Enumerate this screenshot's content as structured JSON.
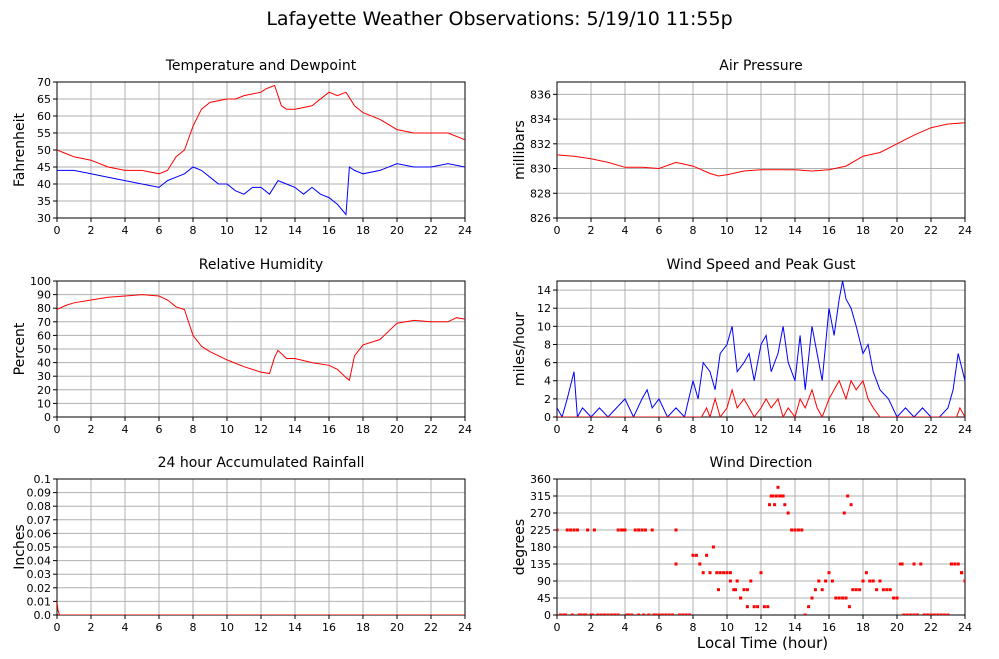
{
  "title": "Lafayette Weather Observations: 5/19/10 11:55p",
  "xlabel": "Local Time (hour)",
  "colors": {
    "red": "#ff0000",
    "blue": "#0000ff",
    "grid": "#b0b0b0",
    "axis": "#000000"
  },
  "chart_data": [
    {
      "type": "line",
      "title": "Temperature and Dewpoint",
      "ylabel": "Fahrenheit",
      "xlim": [
        0,
        24
      ],
      "ylim": [
        30,
        70
      ],
      "xticks": [
        0,
        2,
        4,
        6,
        8,
        10,
        12,
        14,
        16,
        18,
        20,
        22,
        24
      ],
      "yticks": [
        30,
        35,
        40,
        45,
        50,
        55,
        60,
        65,
        70
      ],
      "grid": true,
      "series": [
        {
          "color": "#ff0000",
          "x": [
            0,
            0.5,
            1,
            2,
            3,
            4,
            5,
            6,
            6.5,
            7,
            7.5,
            8,
            8.5,
            9,
            10,
            10.5,
            11,
            12,
            12.3,
            12.8,
            13.2,
            13.5,
            14,
            15,
            16,
            16.5,
            17,
            17.5,
            18,
            19,
            20,
            21,
            22,
            23,
            24
          ],
          "y": [
            50,
            49,
            48,
            47,
            45,
            44,
            44,
            43,
            44,
            48,
            50,
            57,
            62,
            64,
            65,
            65,
            66,
            67,
            68,
            69,
            63,
            62,
            62,
            63,
            67,
            66,
            67,
            63,
            61,
            59,
            56,
            55,
            55,
            55,
            53
          ]
        },
        {
          "color": "#0000ff",
          "x": [
            0,
            1,
            2,
            3,
            4,
            5,
            6,
            6.5,
            7,
            7.5,
            8,
            8.5,
            9,
            9.5,
            10,
            10.5,
            11,
            11.5,
            12,
            12.5,
            13,
            13.5,
            14,
            14.5,
            15,
            15.5,
            16,
            16.5,
            17,
            17.2,
            17.5,
            18,
            19,
            20,
            21,
            22,
            23,
            24
          ],
          "y": [
            44,
            44,
            43,
            42,
            41,
            40,
            39,
            41,
            42,
            43,
            45,
            44,
            42,
            40,
            40,
            38,
            37,
            39,
            39,
            37,
            41,
            40,
            39,
            37,
            39,
            37,
            36,
            34,
            31,
            45,
            44,
            43,
            44,
            46,
            45,
            45,
            46,
            45
          ]
        }
      ]
    },
    {
      "type": "line",
      "title": "Air Pressure",
      "ylabel": "millibars",
      "xlim": [
        0,
        24
      ],
      "ylim": [
        826,
        837
      ],
      "xticks": [
        0,
        2,
        4,
        6,
        8,
        10,
        12,
        14,
        16,
        18,
        20,
        22,
        24
      ],
      "yticks": [
        826,
        828,
        830,
        832,
        834,
        836
      ],
      "grid": true,
      "series": [
        {
          "color": "#ff0000",
          "x": [
            0,
            1,
            2,
            3,
            4,
            5,
            6,
            7,
            8,
            9,
            9.5,
            10,
            11,
            12,
            13,
            14,
            15,
            16,
            17,
            18,
            19,
            20,
            21,
            22,
            23,
            24
          ],
          "y": [
            831.1,
            831,
            830.8,
            830.5,
            830.1,
            830.1,
            830,
            830.5,
            830.2,
            829.6,
            829.4,
            829.5,
            829.8,
            829.9,
            829.9,
            829.9,
            829.8,
            829.9,
            830.2,
            831,
            831.3,
            832,
            832.7,
            833.3,
            833.6,
            833.7
          ]
        }
      ]
    },
    {
      "type": "line",
      "title": "Relative Humidity",
      "ylabel": "Percent",
      "xlim": [
        0,
        24
      ],
      "ylim": [
        0,
        100
      ],
      "xticks": [
        0,
        2,
        4,
        6,
        8,
        10,
        12,
        14,
        16,
        18,
        20,
        22,
        24
      ],
      "yticks": [
        0,
        10,
        20,
        30,
        40,
        50,
        60,
        70,
        80,
        90,
        100
      ],
      "grid": true,
      "series": [
        {
          "color": "#ff0000",
          "x": [
            0,
            0.5,
            1,
            2,
            3,
            4,
            5,
            6,
            6.5,
            7,
            7.5,
            8,
            8.5,
            9,
            10,
            11,
            12,
            12.5,
            12.8,
            13,
            13.5,
            14,
            15,
            16,
            16.5,
            17,
            17.2,
            17.5,
            18,
            19,
            20,
            21,
            22,
            23,
            23.5,
            24
          ],
          "y": [
            79,
            82,
            84,
            86,
            88,
            89,
            90,
            89,
            86,
            81,
            79,
            60,
            52,
            48,
            42,
            37,
            33,
            32,
            44,
            49,
            43,
            43,
            40,
            38,
            35,
            29,
            27,
            45,
            53,
            57,
            69,
            71,
            70,
            70,
            73,
            72
          ]
        }
      ]
    },
    {
      "type": "line",
      "title": "Wind Speed and Peak Gust",
      "ylabel": "miles/hour",
      "xlim": [
        0,
        24
      ],
      "ylim": [
        0,
        15
      ],
      "xticks": [
        0,
        2,
        4,
        6,
        8,
        10,
        12,
        14,
        16,
        18,
        20,
        22,
        24
      ],
      "yticks": [
        0,
        2,
        4,
        6,
        8,
        10,
        12,
        14
      ],
      "grid": true,
      "series": [
        {
          "color": "#0000ff",
          "x": [
            0,
            0.3,
            0.6,
            1,
            1.2,
            1.5,
            2,
            2.5,
            3,
            3.5,
            4,
            4.5,
            5,
            5.3,
            5.6,
            6,
            6.5,
            7,
            7.5,
            8,
            8.3,
            8.6,
            9,
            9.3,
            9.6,
            10,
            10.3,
            10.6,
            11,
            11.3,
            11.6,
            12,
            12.3,
            12.6,
            13,
            13.3,
            13.6,
            14,
            14.3,
            14.6,
            15,
            15.3,
            15.6,
            16,
            16.3,
            16.6,
            16.8,
            17,
            17.3,
            17.6,
            18,
            18.3,
            18.6,
            19,
            19.5,
            20,
            20.5,
            21,
            21.5,
            22,
            22.5,
            23,
            23.3,
            23.6,
            24
          ],
          "y": [
            1,
            0,
            2,
            5,
            0,
            1,
            0,
            1,
            0,
            1,
            2,
            0,
            2,
            3,
            1,
            2,
            0,
            1,
            0,
            4,
            2,
            6,
            5,
            3,
            7,
            8,
            10,
            5,
            6,
            7,
            4,
            8,
            9,
            5,
            7,
            10,
            6,
            4,
            9,
            3,
            10,
            7,
            4,
            12,
            9,
            13,
            15,
            13,
            12,
            10,
            7,
            8,
            5,
            3,
            2,
            0,
            1,
            0,
            1,
            0,
            0,
            1,
            3,
            7,
            4
          ]
        },
        {
          "color": "#ff0000",
          "x": [
            0,
            8.5,
            8.8,
            9,
            9.3,
            9.6,
            10,
            10.3,
            10.6,
            11,
            11.3,
            11.6,
            12,
            12.3,
            12.6,
            13,
            13.3,
            13.6,
            14,
            14.3,
            14.6,
            15,
            15.3,
            15.6,
            16,
            16.3,
            16.6,
            17,
            17.3,
            17.6,
            18,
            18.3,
            18.6,
            19,
            23.5,
            23.7,
            24
          ],
          "y": [
            0,
            0,
            1,
            0,
            2,
            0,
            1,
            3,
            1,
            2,
            1,
            0,
            1,
            2,
            1,
            2,
            0,
            1,
            0,
            2,
            1,
            3,
            1,
            0,
            2,
            3,
            4,
            2,
            4,
            3,
            4,
            2,
            1,
            0,
            0,
            1,
            0
          ]
        }
      ]
    },
    {
      "type": "line",
      "title": "24 hour Accumulated Rainfall",
      "ylabel": "Inches",
      "xlim": [
        0,
        24
      ],
      "ylim": [
        0,
        0.1
      ],
      "xticks": [
        0,
        2,
        4,
        6,
        8,
        10,
        12,
        14,
        16,
        18,
        20,
        22,
        24
      ],
      "yticks": [
        0.0,
        0.01,
        0.02,
        0.03,
        0.04,
        0.05,
        0.06,
        0.07,
        0.08,
        0.09,
        0.1
      ],
      "ytick_labels": [
        "0.0",
        "0.01",
        "0.02",
        "0.03",
        "0.04",
        "0.05",
        "0.06",
        "0.07",
        "0.08",
        "0.09",
        "0.1"
      ],
      "grid": true,
      "series": [
        {
          "color": "#ff0000",
          "x": [
            0,
            0.05,
            0.15,
            24
          ],
          "y": [
            0.01,
            0.004,
            0,
            0
          ]
        }
      ]
    },
    {
      "type": "scatter",
      "title": "Wind Direction",
      "ylabel": "degrees",
      "xlim": [
        0,
        24
      ],
      "ylim": [
        0,
        360
      ],
      "xticks": [
        0,
        2,
        4,
        6,
        8,
        10,
        12,
        14,
        16,
        18,
        20,
        22,
        24
      ],
      "yticks": [
        0,
        45,
        90,
        135,
        180,
        225,
        270,
        315,
        360
      ],
      "grid": true,
      "series": [
        {
          "color": "#ff0000",
          "x": [
            0,
            0.2,
            0.4,
            0.6,
            0.8,
            1.0,
            1.2,
            1.4,
            1.6,
            1.8,
            2.0,
            2.2,
            2.4,
            2.6,
            2.8,
            3.0,
            3.2,
            3.4,
            3.6,
            3.8,
            4.0,
            4.2,
            4.4,
            4.6,
            4.8,
            5.0,
            5.2,
            5.4,
            5.6,
            5.8,
            6.0,
            6.2,
            6.4,
            6.6,
            6.8,
            7.0,
            7.2,
            7.4,
            7.6,
            7.8,
            0.5,
            0.9,
            1.3,
            1.7,
            2.1,
            3.6,
            3.9,
            4.1,
            4.8,
            5.1,
            5.4,
            5.7,
            7.0,
            8.0,
            8.2,
            8.4,
            8.6,
            8.8,
            9.0,
            9.2,
            9.4,
            9.6,
            9.8,
            10.0,
            10.2,
            10.4,
            10.6,
            10.8,
            11.0,
            11.2,
            11.4,
            11.6,
            11.8,
            9.5,
            10.2,
            10.5,
            10.8,
            11.2,
            12.0,
            12.2,
            12.4,
            12.6,
            12.8,
            13.0,
            13.2,
            13.4,
            13.6,
            13.8,
            14.0,
            14.2,
            14.4,
            12.5,
            12.7,
            12.9,
            13.1,
            13.3,
            14.6,
            14.8,
            15.0,
            15.2,
            15.4,
            15.6,
            15.8,
            16.0,
            16.2,
            16.4,
            16.6,
            16.8,
            17.0,
            17.2,
            17.4,
            17.6,
            17.8,
            18.0,
            18.2,
            18.4,
            18.6,
            18.8,
            19.0,
            19.2,
            19.4,
            19.6,
            19.8,
            20.0,
            16.9,
            17.1,
            17.3,
            20.2,
            20.4,
            20.6,
            20.8,
            21.0,
            21.2,
            21.4,
            21.6,
            21.8,
            22.0,
            22.2,
            22.4,
            22.6,
            22.8,
            23.0,
            23.2,
            23.4,
            23.6,
            23.8,
            24.0,
            20.3,
            21.0,
            23.2,
            23.8
          ],
          "y": [
            225,
            0,
            0,
            225,
            225,
            225,
            225,
            0,
            0,
            225,
            0,
            225,
            0,
            0,
            0,
            0,
            0,
            0,
            225,
            225,
            225,
            0,
            0,
            225,
            225,
            225,
            225,
            0,
            225,
            0,
            0,
            0,
            0,
            0,
            0,
            225,
            0,
            0,
            0,
            0,
            0,
            0,
            0,
            0,
            0,
            0,
            225,
            0,
            0,
            0,
            0,
            0,
            135,
            158,
            158,
            135,
            112,
            158,
            112,
            180,
            112,
            112,
            112,
            112,
            90,
            67,
            90,
            45,
            67,
            22,
            90,
            22,
            22,
            67,
            112,
            67,
            45,
            67,
            112,
            22,
            22,
            315,
            292,
            338,
            315,
            292,
            270,
            225,
            225,
            225,
            225,
            292,
            315,
            315,
            315,
            315,
            0,
            22,
            45,
            67,
            90,
            67,
            90,
            112,
            90,
            45,
            45,
            45,
            45,
            22,
            67,
            67,
            67,
            90,
            112,
            90,
            90,
            67,
            90,
            67,
            67,
            67,
            45,
            45,
            270,
            315,
            292,
            135,
            0,
            0,
            0,
            0,
            0,
            135,
            0,
            0,
            0,
            0,
            0,
            0,
            0,
            0,
            135,
            135,
            135,
            112,
            90,
            135,
            135,
            135,
            112
          ]
        }
      ]
    }
  ]
}
